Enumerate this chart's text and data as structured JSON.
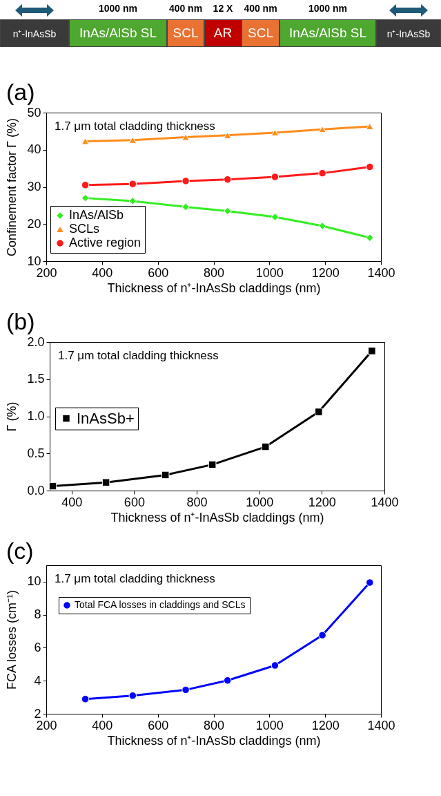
{
  "chart_data": [
    {
      "type": "other",
      "categories": [
        "n⁺-InAsSb",
        "InAs/AlSb SL",
        "SCL",
        "AR",
        "SCL",
        "InAs/AlSb SL",
        "n⁺-InAsSb"
      ],
      "colors": [
        "#3a3a3a",
        "#4ea72e",
        "#e97132",
        "#c00000",
        "#e97132",
        "#4ea72e",
        "#3a3a3a"
      ],
      "annotations": [
        "1000 nm",
        "400 nm",
        "12 X",
        "400 nm",
        "1000 nm"
      ]
    },
    {
      "type": "line",
      "title": "(a)",
      "xlabel": "Thickness of n⁺-InAsSb claddings (nm)",
      "ylabel": "Confinement factor Γ (%)",
      "x": [
        340,
        510,
        700,
        850,
        1020,
        1190,
        1360
      ],
      "xlim": [
        200,
        1400
      ],
      "xticks": [
        200,
        400,
        600,
        800,
        1000,
        1200,
        1400
      ],
      "ylim": [
        10,
        50
      ],
      "yticks": [
        10,
        20,
        30,
        40,
        50
      ],
      "legend": "bottom left",
      "annotations": [
        "1.7 μm total cladding thickness"
      ],
      "series": [
        {
          "name": "InAs/AlSb",
          "color": "#33ee22",
          "marker": "diamond",
          "values": [
            27.0,
            26.2,
            24.6,
            23.5,
            21.9,
            19.5,
            16.3
          ]
        },
        {
          "name": "SCLs",
          "color": "#ff8c1a",
          "marker": "triangle",
          "values": [
            42.3,
            42.6,
            43.4,
            43.9,
            44.6,
            45.5,
            46.3
          ]
        },
        {
          "name": "Active region",
          "color": "#ff1a1a",
          "marker": "circle",
          "values": [
            30.5,
            30.8,
            31.6,
            32.0,
            32.7,
            33.7,
            35.4
          ]
        }
      ]
    },
    {
      "type": "line",
      "title": "(b)",
      "xlabel": "Thickness of n⁺-InAsSb claddings (nm)",
      "ylabel": "Γ (%)",
      "x": [
        340,
        510,
        700,
        850,
        1020,
        1190,
        1360
      ],
      "xlim": [
        330,
        1400
      ],
      "xticks": [
        400,
        600,
        800,
        1000,
        1200,
        1400
      ],
      "ylim": [
        0,
        2
      ],
      "yticks": [
        {
          "value": 0,
          "label": "0.0"
        },
        {
          "value": 0.5,
          "label": "0.5"
        },
        {
          "value": 1,
          "label": "1.0"
        },
        {
          "value": 1.5,
          "label": "1.5"
        },
        {
          "value": 2,
          "label": "2.0"
        }
      ],
      "legend": "left",
      "marker": "square",
      "annotations": [
        "1.7 μm total cladding thickness"
      ],
      "series": [
        {
          "name": "InAsSb+",
          "color": "#000000",
          "values": [
            0.06,
            0.11,
            0.21,
            0.35,
            0.59,
            1.06,
            1.88
          ]
        }
      ]
    },
    {
      "type": "line",
      "title": "(c)",
      "xlabel": "Thickness of n⁺-InAsSb claddings (nm)",
      "ylabel": "FCA losses (cm⁻¹)",
      "x": [
        340,
        510,
        700,
        850,
        1020,
        1190,
        1360
      ],
      "xlim": [
        200,
        1400
      ],
      "xticks": [
        200,
        400,
        600,
        800,
        1000,
        1200,
        1400
      ],
      "ylim": [
        2,
        11
      ],
      "yticks": [
        2,
        4,
        6,
        8,
        10
      ],
      "legend": "top left",
      "marker": "circle",
      "annotations": [
        "1.7 μm total cladding thickness"
      ],
      "series": [
        {
          "name": "Total FCA losses in claddings and SCLs",
          "color": "#0000ff",
          "values": [
            2.89,
            3.1,
            3.45,
            4.02,
            4.93,
            6.76,
            9.95
          ]
        }
      ]
    }
  ]
}
